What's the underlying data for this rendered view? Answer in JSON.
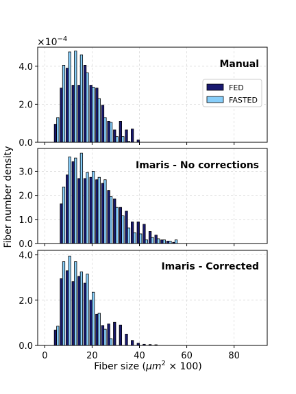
{
  "figure": {
    "ylabel": "Fiber number density",
    "xlabel_prefix": "Fiber size (",
    "xlabel_unit_base": "μm",
    "xlabel_unit_sup": "2",
    "xlabel_suffix": " × 100)",
    "offset_base": "×10",
    "offset_exp": "−4"
  },
  "chart_data": [
    {
      "type": "bar",
      "title": "Manual",
      "xlim": [
        -3,
        94
      ],
      "ylim": [
        0,
        5.0
      ],
      "yticks": [
        "0.0",
        "2.0",
        "4.0"
      ],
      "ytick_values": [
        0,
        2,
        4
      ],
      "xticks": [],
      "y_scale_note": "values in units of 1e-4",
      "grid": true,
      "legend": {
        "placement": "center-right",
        "entries": [
          "FED",
          "FASTED"
        ]
      },
      "categories": [
        5,
        10,
        15,
        20,
        25,
        30,
        35,
        40,
        45,
        50
      ],
      "bins": [
        5,
        7.5,
        10,
        12.5,
        15,
        17.5,
        20,
        22.5,
        25,
        27.5,
        30,
        32.5,
        35,
        37.5,
        40,
        42.5,
        45,
        47.5,
        50,
        52.5
      ],
      "series": [
        {
          "name": "FED",
          "color": "#191970",
          "values": [
            0.95,
            2.85,
            3.9,
            3.0,
            3.0,
            4.05,
            3.0,
            2.85,
            1.95,
            1.1,
            0.65,
            1.1,
            0.65,
            0.7,
            0.12,
            0,
            0,
            0,
            0,
            0
          ]
        },
        {
          "name": "FASTED",
          "color": "#87CEFA",
          "values": [
            1.3,
            4.05,
            4.75,
            4.8,
            4.6,
            3.65,
            2.9,
            2.3,
            1.3,
            1.05,
            0.3,
            0.3,
            0.05,
            0,
            0,
            0,
            0,
            0,
            0,
            0
          ]
        }
      ]
    },
    {
      "type": "bar",
      "title": "Imaris - No corrections",
      "xlim": [
        -3,
        94
      ],
      "ylim": [
        0,
        3.95
      ],
      "yticks": [
        "0.0",
        "1.0",
        "2.0",
        "3.0"
      ],
      "ytick_values": [
        0,
        1,
        2,
        3
      ],
      "xticks": [],
      "grid": true,
      "bins": [
        5,
        7.5,
        10,
        12.5,
        15,
        17.5,
        20,
        22.5,
        25,
        27.5,
        30,
        32.5,
        35,
        37.5,
        40,
        42.5,
        45,
        47.5,
        50,
        52.5,
        55,
        57.5,
        60,
        62.5,
        65,
        67.5,
        70
      ],
      "series": [
        {
          "name": "FED",
          "color": "#191970",
          "values": [
            0,
            1.65,
            2.85,
            3.4,
            2.7,
            2.7,
            2.75,
            2.65,
            2.5,
            2.2,
            1.85,
            1.5,
            1.35,
            0.9,
            0.9,
            0.8,
            0.5,
            0.35,
            0.15,
            0.1,
            0.05,
            0,
            0,
            0,
            0,
            0,
            0
          ]
        },
        {
          "name": "FASTED",
          "color": "#87CEFA",
          "values": [
            0,
            2.35,
            3.6,
            3.55,
            3.75,
            2.95,
            3.0,
            2.75,
            2.65,
            1.95,
            1.5,
            1.15,
            0.65,
            0.45,
            0.4,
            0.15,
            0.25,
            0.2,
            0.15,
            0.1,
            0.15,
            0,
            0,
            0,
            0,
            0,
            0
          ]
        }
      ]
    },
    {
      "type": "bar",
      "title": "Imaris - Corrected",
      "xlim": [
        -3,
        94
      ],
      "ylim": [
        0,
        4.2
      ],
      "yticks": [
        "0.0",
        "2.0",
        "4.0"
      ],
      "ytick_values": [
        0,
        2,
        4
      ],
      "xticks": [
        "0",
        "20",
        "40",
        "60",
        "80"
      ],
      "xtick_values": [
        0,
        20,
        40,
        60,
        80
      ],
      "grid": true,
      "bins": [
        5,
        7.5,
        10,
        12.5,
        15,
        17.5,
        20,
        22.5,
        25,
        27.5,
        30,
        32.5,
        35,
        37.5,
        40,
        42.5,
        45,
        47.5,
        50,
        52.5,
        55,
        57.5,
        60,
        62.5,
        65,
        67.5,
        70,
        72.5,
        75
      ],
      "series": [
        {
          "name": "FED",
          "color": "#191970",
          "values": [
            0.68,
            2.95,
            3.3,
            2.82,
            3.05,
            2.75,
            2.0,
            1.38,
            0.88,
            0.95,
            1.02,
            0.9,
            0.5,
            0.22,
            0.1,
            0.05,
            0.04,
            0.03,
            0,
            0,
            0,
            0,
            0,
            0,
            0,
            0,
            0,
            0,
            0
          ]
        },
        {
          "name": "FASTED",
          "color": "#87CEFA",
          "values": [
            0.85,
            3.7,
            3.95,
            3.7,
            3.25,
            3.15,
            2.35,
            1.42,
            0.72,
            0.3,
            0,
            0,
            0,
            0,
            0,
            0,
            0,
            0,
            0,
            0,
            0,
            0,
            0,
            0,
            0,
            0,
            0,
            0,
            0
          ]
        }
      ]
    }
  ]
}
